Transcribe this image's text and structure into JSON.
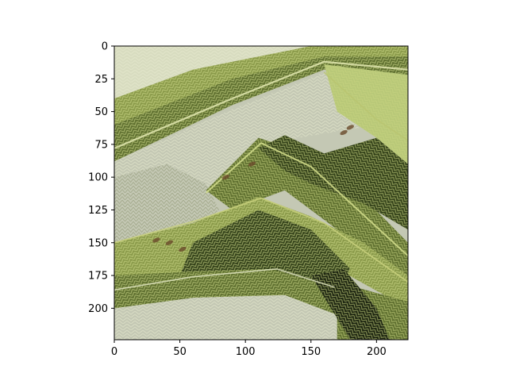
{
  "chart_data": {
    "type": "heatmap",
    "title": "",
    "xlabel": "",
    "ylabel": "",
    "image_size": [
      224,
      224
    ],
    "xlim": [
      0,
      224
    ],
    "ylim": [
      224,
      0
    ],
    "xticks": [
      0,
      50,
      100,
      150,
      200
    ],
    "yticks": [
      0,
      25,
      50,
      75,
      100,
      125,
      150,
      175,
      200
    ],
    "grid": false,
    "legend": "none",
    "image_description": "Stylized, knitted-texture rendering of stepped roof ridges in olive, moss green and pale grey tones",
    "palette": {
      "light": "#d8dcc0",
      "pale_grey": "#c4c8b4",
      "yellow_green": "#b8c878",
      "olive": "#8a9a4a",
      "moss": "#5f7030",
      "dark_moss": "#34421a",
      "shadow": "#1c2410",
      "rust": "#6a4a2a"
    },
    "frame_color": "#000000"
  }
}
